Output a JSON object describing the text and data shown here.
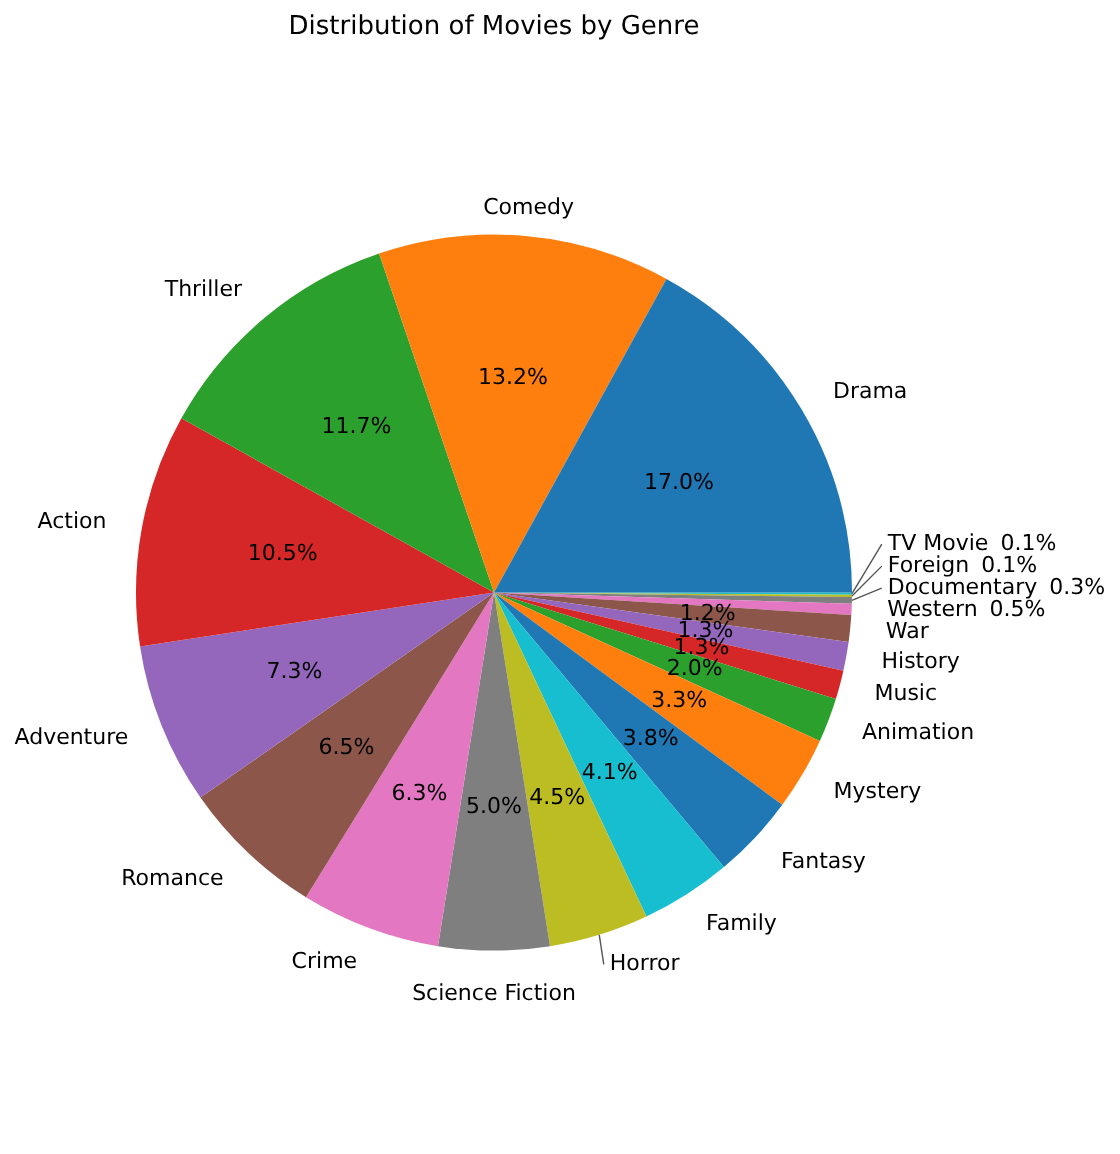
{
  "chart_data": {
    "type": "pie",
    "title": "Distribution of Movies by Genre",
    "categories": [
      "Drama",
      "Comedy",
      "Thriller",
      "Action",
      "Adventure",
      "Romance",
      "Crime",
      "Science Fiction",
      "Horror",
      "Family",
      "Fantasy",
      "Mystery",
      "Animation",
      "Music",
      "History",
      "War",
      "Western",
      "Documentary",
      "Foreign",
      "TV Movie"
    ],
    "values": [
      17.0,
      13.2,
      11.7,
      10.5,
      7.3,
      6.5,
      6.3,
      5.0,
      4.5,
      4.1,
      3.8,
      3.3,
      2.0,
      1.3,
      1.3,
      1.2,
      0.5,
      0.3,
      0.1,
      0.1
    ],
    "colors": [
      "#1f77b4",
      "#ff7f0e",
      "#2ca02c",
      "#d62728",
      "#9467bd",
      "#8c564b",
      "#e377c2",
      "#7f7f7f",
      "#bcbd22",
      "#17becf",
      "#1f77b4",
      "#ff7f0e",
      "#2ca02c",
      "#d62728",
      "#9467bd",
      "#8c564b",
      "#e377c2",
      "#7f7f7f",
      "#bcbd22",
      "#17becf"
    ],
    "value_labels": [
      "17.0%",
      "13.2%",
      "11.7%",
      "10.5%",
      "7.3%",
      "6.5%",
      "6.3%",
      "5.0%",
      "4.5%",
      "4.1%",
      "3.8%",
      "3.3%",
      "2.0%",
      "1.3%",
      "1.3%",
      "1.2%",
      "0.5%",
      "0.3%",
      "0.1%",
      "0.1%"
    ],
    "legend": false
  }
}
